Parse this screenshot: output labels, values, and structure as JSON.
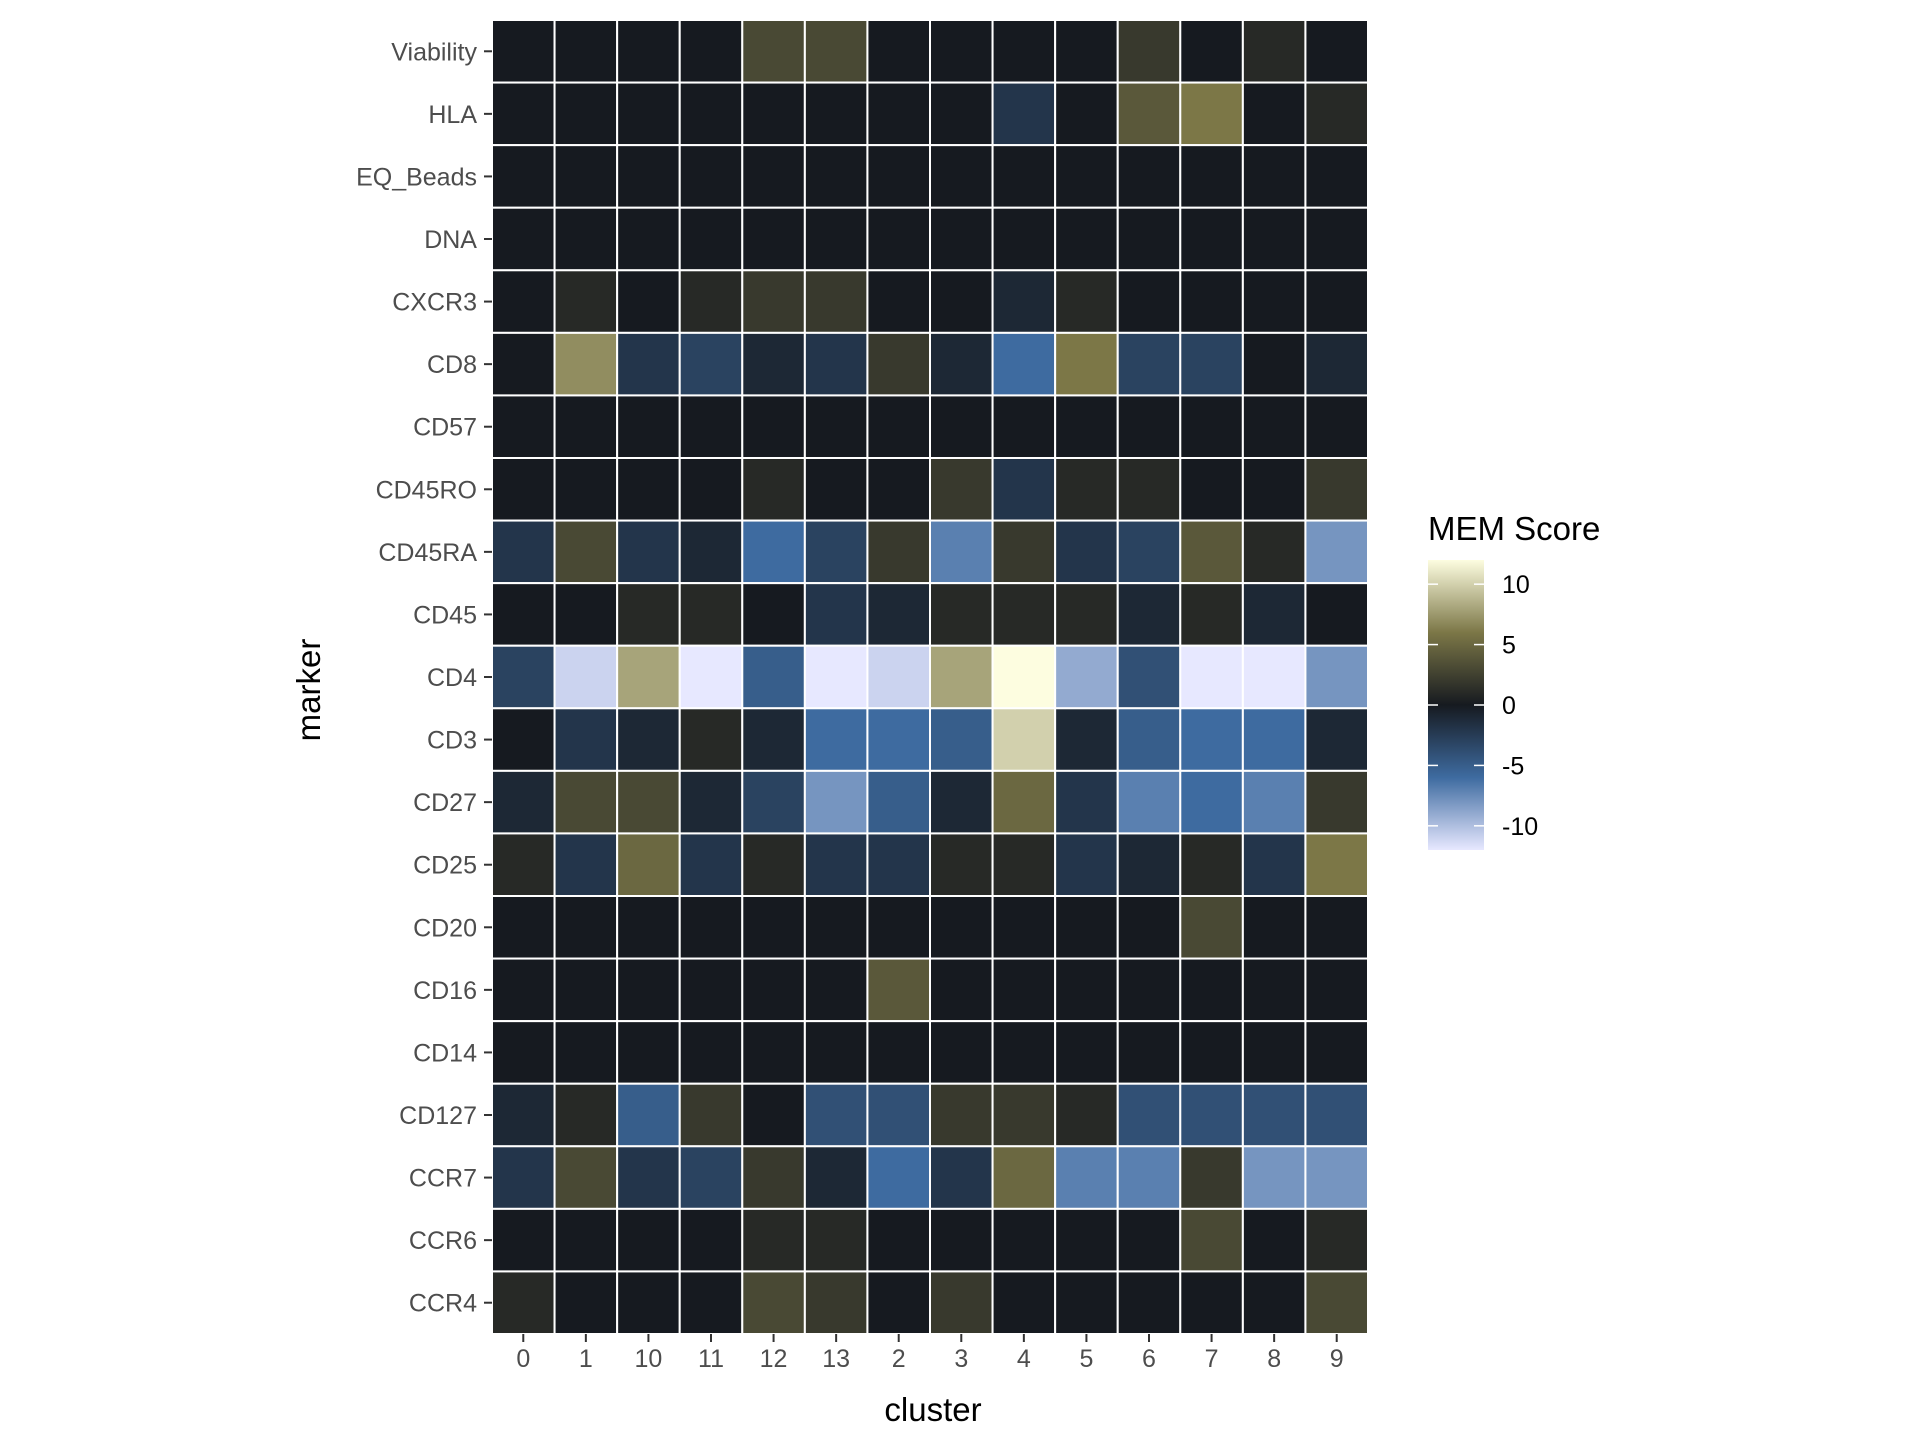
{
  "chart_data": {
    "type": "heatmap",
    "xlabel": "cluster",
    "ylabel": "marker",
    "x": [
      "0",
      "1",
      "10",
      "11",
      "12",
      "13",
      "2",
      "3",
      "4",
      "5",
      "6",
      "7",
      "8",
      "9"
    ],
    "y": [
      "Viability",
      "HLA",
      "EQ_Beads",
      "DNA",
      "CXCR3",
      "CD8",
      "CD57",
      "CD45RO",
      "CD45RA",
      "CD45",
      "CD4",
      "CD3",
      "CD27",
      "CD25",
      "CD20",
      "CD16",
      "CD14",
      "CD127",
      "CCR7",
      "CCR6",
      "CCR4"
    ],
    "values": [
      [
        0,
        0,
        0,
        0,
        3,
        3,
        0,
        0,
        0,
        0,
        2,
        0,
        1,
        0
      ],
      [
        0,
        0,
        0,
        0,
        0,
        0,
        0,
        0,
        -2,
        0,
        4,
        6,
        0,
        1
      ],
      [
        0,
        0,
        0,
        0,
        0,
        0,
        0,
        0,
        0,
        0,
        0,
        0,
        0,
        0
      ],
      [
        0,
        0,
        0,
        0,
        0,
        0,
        0,
        0,
        0,
        0,
        0,
        0,
        0,
        0
      ],
      [
        0,
        1,
        0,
        1,
        2,
        2,
        0,
        0,
        -1,
        1,
        0,
        0,
        0,
        0
      ],
      [
        0,
        7,
        -2,
        -3,
        -1,
        -2,
        2,
        -1,
        -6,
        6,
        -3,
        -3,
        0,
        -1
      ],
      [
        0,
        0,
        0,
        0,
        0,
        0,
        0,
        0,
        0,
        0,
        0,
        0,
        0,
        0
      ],
      [
        0,
        0,
        0,
        0,
        1,
        0,
        0,
        2,
        -2,
        1,
        1,
        0,
        0,
        2
      ],
      [
        -2,
        3,
        -2,
        -1,
        -6,
        -3,
        2,
        -7,
        2,
        -2,
        -3,
        4,
        1,
        -8
      ],
      [
        0,
        0,
        1,
        1,
        0,
        -2,
        -1,
        1,
        1,
        1,
        -1,
        1,
        -1,
        0
      ],
      [
        -3,
        -11,
        8,
        -13,
        -5,
        -13,
        -11,
        8,
        12,
        -9,
        -4,
        -12,
        -13,
        -8
      ],
      [
        0,
        -2,
        -1,
        1,
        -1,
        -6,
        -6,
        -5,
        10,
        -1,
        -5,
        -6,
        -6,
        -1
      ],
      [
        -1,
        3,
        3,
        -1,
        -3,
        -8,
        -5,
        -1,
        5,
        -2,
        -7,
        -6,
        -7,
        2
      ],
      [
        1,
        -2,
        5,
        -2,
        1,
        -2,
        -2,
        1,
        1,
        -2,
        -1,
        1,
        -2,
        6
      ],
      [
        0,
        0,
        0,
        0,
        0,
        0,
        0,
        0,
        0,
        0,
        0,
        3,
        0,
        0
      ],
      [
        0,
        0,
        0,
        0,
        0,
        0,
        4,
        0,
        0,
        0,
        0,
        0,
        0,
        0
      ],
      [
        0,
        0,
        0,
        0,
        0,
        0,
        0,
        0,
        0,
        0,
        0,
        0,
        0,
        0
      ],
      [
        -1,
        1,
        -5,
        2,
        0,
        -4,
        -4,
        2,
        2,
        1,
        -4,
        -4,
        -4,
        -4
      ],
      [
        -2,
        3,
        -2,
        -3,
        2,
        -1,
        -6,
        -2,
        5,
        -7,
        -7,
        2,
        -8,
        -8
      ],
      [
        0,
        0,
        0,
        0,
        1,
        1,
        0,
        0,
        0,
        0,
        0,
        3,
        0,
        1
      ],
      [
        1,
        0,
        0,
        0,
        3,
        2,
        0,
        2,
        0,
        0,
        0,
        0,
        0,
        3
      ]
    ],
    "color_scale": {
      "title": "MEM Score",
      "range": [
        -12,
        12
      ],
      "ticks": [
        10,
        5,
        0,
        -5,
        -10
      ],
      "colors": [
        "#e7e8ff",
        "#3e6ba0",
        "#161a20",
        "#7c7747",
        "#fdfde0"
      ]
    },
    "grid": false,
    "legend_position": "right"
  }
}
